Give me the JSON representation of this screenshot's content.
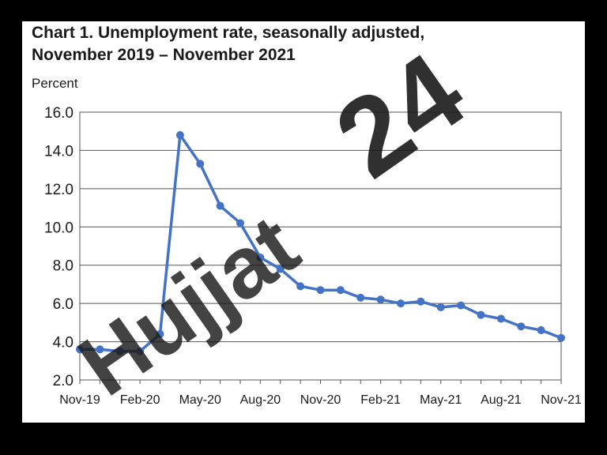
{
  "chart_data": {
    "type": "line",
    "title": "Chart 1. Unemployment rate, seasonally adjusted,",
    "subtitle": "November 2019 – November 2021",
    "xlabel": "",
    "ylabel": "Percent",
    "ylim": [
      2.0,
      16.0
    ],
    "yticks": [
      "16.0",
      "14.0",
      "12.0",
      "10.0",
      "8.0",
      "6.0",
      "4.0",
      "2.0"
    ],
    "ytick_values": [
      16,
      14,
      12,
      10,
      8,
      6,
      4,
      2
    ],
    "xtick_labels": [
      "Nov-19",
      "Feb-20",
      "May-20",
      "Aug-20",
      "Nov-20",
      "Feb-21",
      "May-21",
      "Aug-21",
      "Nov-21"
    ],
    "xtick_indices": [
      0,
      3,
      6,
      9,
      12,
      15,
      18,
      21,
      24
    ],
    "grid": true,
    "series": [
      {
        "color": "#4472c4",
        "x": [
          "Nov-19",
          "Dec-19",
          "Jan-20",
          "Feb-20",
          "Mar-20",
          "Apr-20",
          "May-20",
          "Jun-20",
          "Jul-20",
          "Aug-20",
          "Sep-20",
          "Oct-20",
          "Nov-20",
          "Dec-20",
          "Jan-21",
          "Feb-21",
          "Mar-21",
          "Apr-21",
          "May-21",
          "Jun-21",
          "Jul-21",
          "Aug-21",
          "Sep-21",
          "Oct-21",
          "Nov-21"
        ],
        "values": [
          3.6,
          3.6,
          3.5,
          3.5,
          4.4,
          14.8,
          13.3,
          11.1,
          10.2,
          8.4,
          7.8,
          6.9,
          6.7,
          6.7,
          6.3,
          6.2,
          6.0,
          6.1,
          5.8,
          5.9,
          5.4,
          5.2,
          4.8,
          4.6,
          4.2
        ]
      }
    ]
  },
  "watermark": {
    "text_gray": "Hujjat",
    "text_purple": "24",
    "color_gray": "#808080",
    "color_purple": "#c9b3f2"
  }
}
